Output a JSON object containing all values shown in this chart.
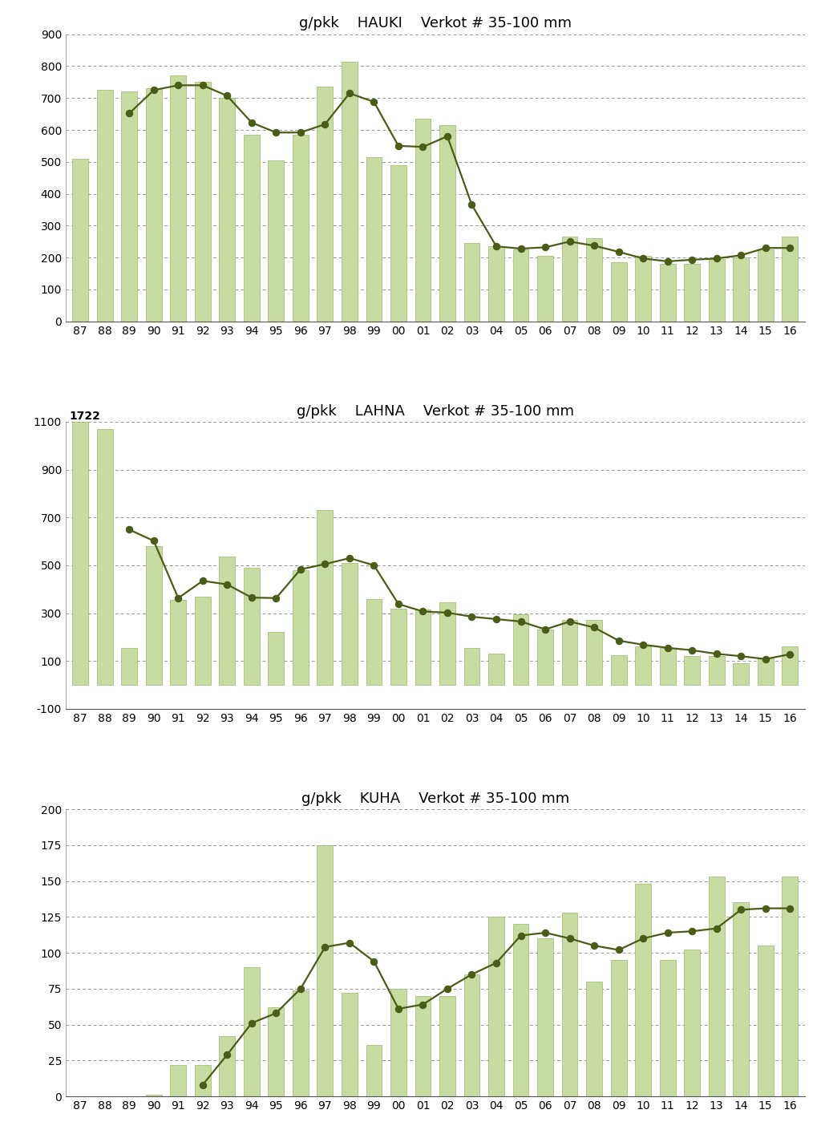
{
  "years_labels": [
    "87",
    "88",
    "89",
    "90",
    "91",
    "92",
    "93",
    "94",
    "95",
    "96",
    "97",
    "98",
    "99",
    "00",
    "01",
    "02",
    "03",
    "04",
    "05",
    "06",
    "07",
    "08",
    "09",
    "10",
    "11",
    "12",
    "13",
    "14",
    "15",
    "16"
  ],
  "hauki": {
    "title": "g/pkk    HAUKI    Verkot # 35-100 mm",
    "bar_values": [
      510,
      725,
      720,
      730,
      770,
      750,
      700,
      585,
      505,
      585,
      735,
      815,
      515,
      490,
      635,
      615,
      245,
      235,
      225,
      205,
      265,
      260,
      185,
      205,
      180,
      180,
      195,
      200,
      225,
      265
    ],
    "line_values": [
      null,
      null,
      652,
      725,
      740,
      740,
      707,
      623,
      592,
      592,
      618,
      715,
      688,
      550,
      547,
      580,
      365,
      235,
      228,
      232,
      250,
      237,
      218,
      197,
      188,
      193,
      197,
      207,
      230,
      230
    ],
    "ylim": [
      0,
      900
    ],
    "yticks": [
      0,
      100,
      200,
      300,
      400,
      500,
      600,
      700,
      800,
      900
    ]
  },
  "lahna": {
    "title": "g/pkk    LAHNA    Verkot # 35-100 mm",
    "annotation": "1722",
    "bar_values": [
      1722,
      1070,
      155,
      580,
      355,
      370,
      535,
      490,
      220,
      480,
      730,
      510,
      360,
      320,
      315,
      345,
      155,
      130,
      295,
      230,
      270,
      270,
      125,
      160,
      155,
      120,
      120,
      90,
      110,
      160
    ],
    "bar_values_clipped": [
      1100,
      1070,
      155,
      580,
      355,
      370,
      535,
      490,
      220,
      480,
      730,
      510,
      360,
      320,
      315,
      345,
      155,
      130,
      295,
      230,
      270,
      270,
      125,
      160,
      155,
      120,
      120,
      90,
      110,
      160
    ],
    "line_values": [
      null,
      null,
      649,
      602,
      363,
      435,
      420,
      365,
      363,
      483,
      505,
      530,
      500,
      338,
      307,
      302,
      285,
      275,
      265,
      232,
      265,
      240,
      185,
      168,
      155,
      145,
      130,
      120,
      108,
      128
    ],
    "ylim": [
      -100,
      1200
    ],
    "ylim_display": [
      -100,
      1100
    ],
    "yticks": [
      -100,
      100,
      300,
      500,
      700,
      900,
      1100
    ]
  },
  "kuha": {
    "title": "g/pkk    KUHA    Verkot # 35-100 mm",
    "bar_values": [
      0,
      0,
      0,
      1,
      22,
      22,
      42,
      90,
      62,
      74,
      175,
      72,
      36,
      75,
      70,
      70,
      85,
      125,
      120,
      110,
      128,
      80,
      95,
      148,
      95,
      102,
      153,
      135,
      105,
      153
    ],
    "line_values": [
      null,
      null,
      null,
      null,
      null,
      8,
      29,
      51,
      58,
      75,
      104,
      107,
      94,
      61,
      64,
      75,
      85,
      93,
      112,
      114,
      110,
      105,
      102,
      110,
      114,
      115,
      117,
      130,
      131,
      131
    ],
    "ylim": [
      0,
      200
    ],
    "yticks": [
      0,
      25,
      50,
      75,
      100,
      125,
      150,
      175,
      200
    ]
  },
  "bar_color": "#c8dba0",
  "bar_edge_color": "#9ab870",
  "line_color": "#4a5c18",
  "line_marker_size": 6,
  "background_color": "#ffffff",
  "grid_color": "#999999",
  "title_fontsize": 13,
  "tick_fontsize": 10,
  "fig_width": 10.24,
  "fig_height": 14.24,
  "dpi": 100
}
